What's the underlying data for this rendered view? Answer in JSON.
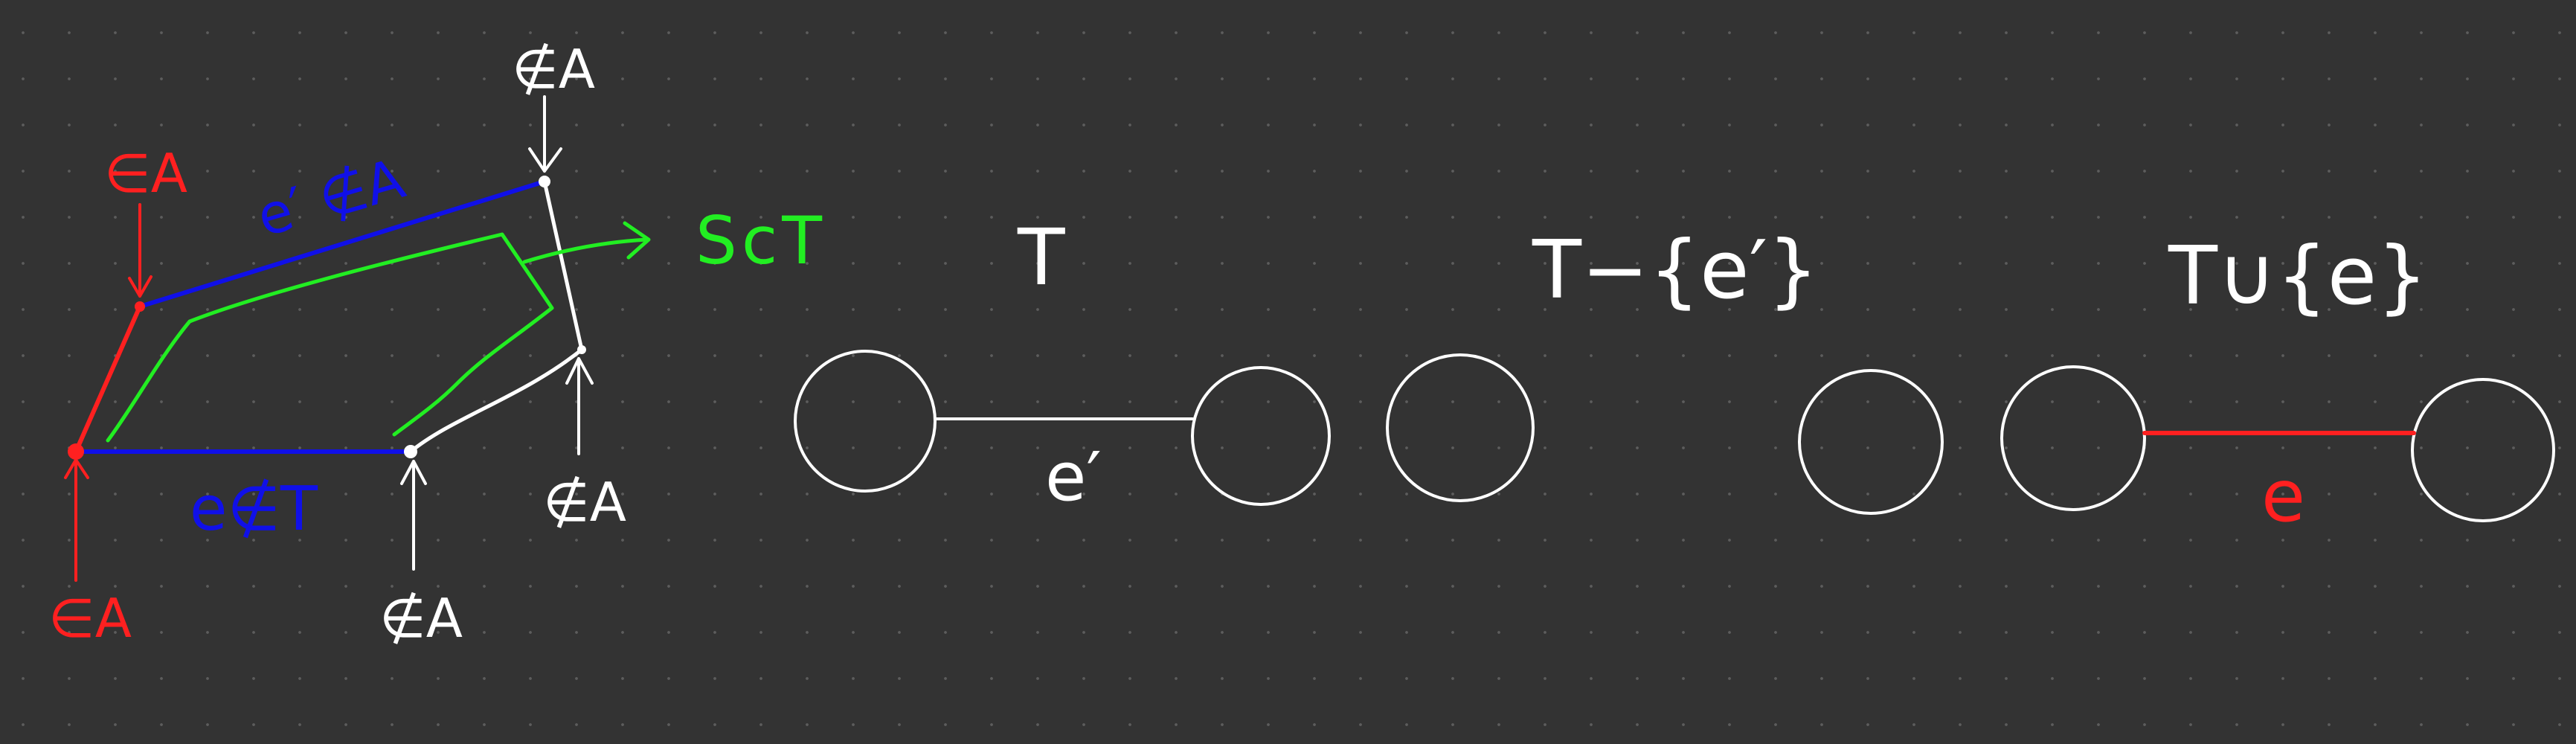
{
  "colors": {
    "background": "#333333",
    "white": "#ffffff",
    "red": "#ff2020",
    "blue": "#1010e8",
    "green": "#22ee22"
  },
  "left_figure": {
    "label_in_a_top": "∈A",
    "label_e_prime_not_in_a": "e′ ∉A",
    "label_not_in_a_top": "∉A",
    "label_sct": "ScT",
    "label_e_not_in_t": "e∉T",
    "label_not_in_a_right": "∉A",
    "label_not_in_a_bottom": "∉A",
    "label_in_a_bottom": "∈A"
  },
  "t_figure": {
    "title": "T",
    "edge_label": "e′"
  },
  "t_minus_figure": {
    "title": "T−{e′}"
  },
  "t_union_figure": {
    "title": "T∪{e}",
    "edge_label": "e"
  }
}
